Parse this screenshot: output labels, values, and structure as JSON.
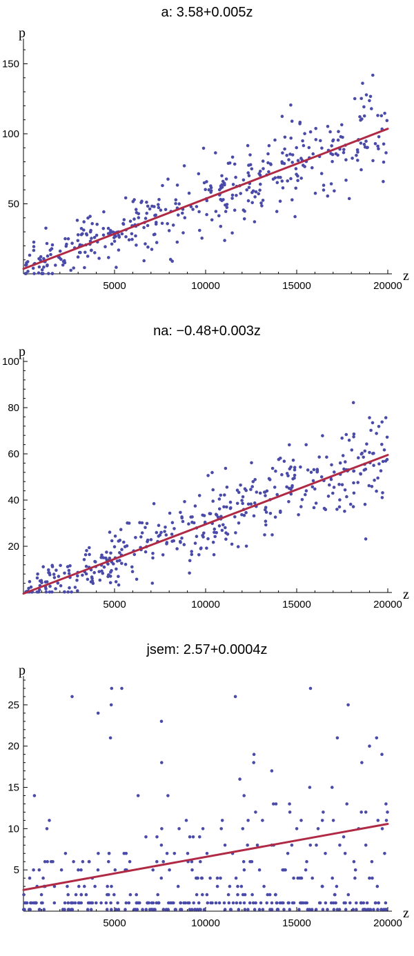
{
  "chart_data": [
    {
      "type": "scatter",
      "title": "a: 3.58+0.005z",
      "xlabel": "z",
      "ylabel": "p",
      "xlim": [
        0,
        20000
      ],
      "ylim": [
        0,
        165
      ],
      "xticks": [
        "5000",
        "10000",
        "15000",
        "20000"
      ],
      "yticks": [
        "50",
        "100",
        "150"
      ],
      "fit": {
        "intercept": 3.58,
        "slope": 0.005
      },
      "n_points": 420,
      "seed": 17,
      "noise_base": 2,
      "noise_scale": 0.9,
      "integer": false,
      "point_color": "#4a4aa8",
      "line_color": "#b02a45"
    },
    {
      "type": "scatter",
      "title": "na: −0.48+0.003z",
      "xlabel": "z",
      "ylabel": "p",
      "xlim": [
        0,
        20000
      ],
      "ylim": [
        0,
        100
      ],
      "xticks": [
        "5000",
        "10000",
        "15000",
        "20000"
      ],
      "yticks": [
        "20",
        "40",
        "60",
        "80",
        "100"
      ],
      "fit": {
        "intercept": -0.48,
        "slope": 0.003
      },
      "n_points": 420,
      "seed": 41,
      "noise_base": 1.5,
      "noise_scale": 0.65,
      "integer": false,
      "point_color": "#4a4aa8",
      "line_color": "#b02a45"
    },
    {
      "type": "scatter",
      "title": "jsem: 2.57+0.0004z",
      "xlabel": "z",
      "ylabel": "p",
      "xlim": [
        0,
        20000
      ],
      "ylim": [
        0,
        28
      ],
      "xticks": [
        "5000",
        "10000",
        "15000",
        "20000"
      ],
      "yticks": [
        "5",
        "10",
        "15",
        "20",
        "25"
      ],
      "fit": {
        "intercept": 2.57,
        "slope": 0.0004
      },
      "n_points": 400,
      "seed": 7,
      "noise_base": 0,
      "noise_scale": 0,
      "integer": true,
      "point_color": "#4a4aa8",
      "line_color": "#b02a45"
    }
  ]
}
